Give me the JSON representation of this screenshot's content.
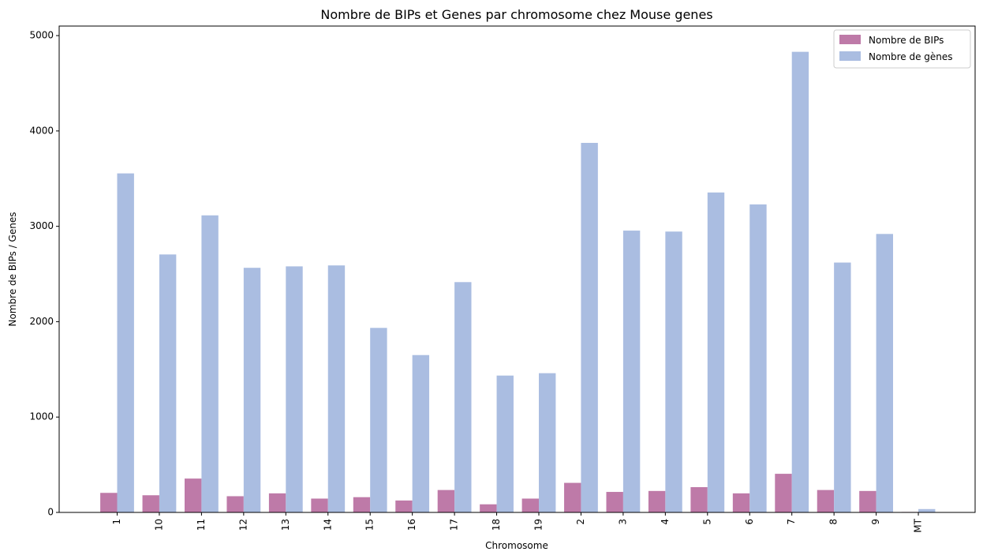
{
  "chart_data": {
    "type": "bar",
    "title": "Nombre de BIPs et Genes par chromosome chez Mouse genes",
    "xlabel": "Chromosome",
    "ylabel": "Nombre de BIPs / Genes",
    "ylim": [
      0,
      5100
    ],
    "yticks": [
      "0",
      "1000",
      "2000",
      "3000",
      "4000",
      "5000"
    ],
    "grid": false,
    "legend_position": "top-right",
    "categories": [
      "1",
      "10",
      "11",
      "12",
      "13",
      "14",
      "15",
      "16",
      "17",
      "18",
      "19",
      "2",
      "3",
      "4",
      "5",
      "6",
      "7",
      "8",
      "9",
      "MT"
    ],
    "series": [
      {
        "name": "Nombre de BIPs",
        "color": "#be7aa8",
        "values": [
          205,
          180,
          355,
          170,
          200,
          145,
          160,
          125,
          235,
          85,
          145,
          310,
          215,
          225,
          265,
          200,
          405,
          235,
          225,
          5
        ]
      },
      {
        "name": "Nombre de gènes",
        "color": "#aabde1",
        "values": [
          3555,
          2705,
          3115,
          2565,
          2580,
          2590,
          1935,
          1650,
          2415,
          1435,
          1460,
          3875,
          2955,
          2945,
          3355,
          3230,
          4830,
          2620,
          2920,
          35
        ]
      }
    ]
  }
}
